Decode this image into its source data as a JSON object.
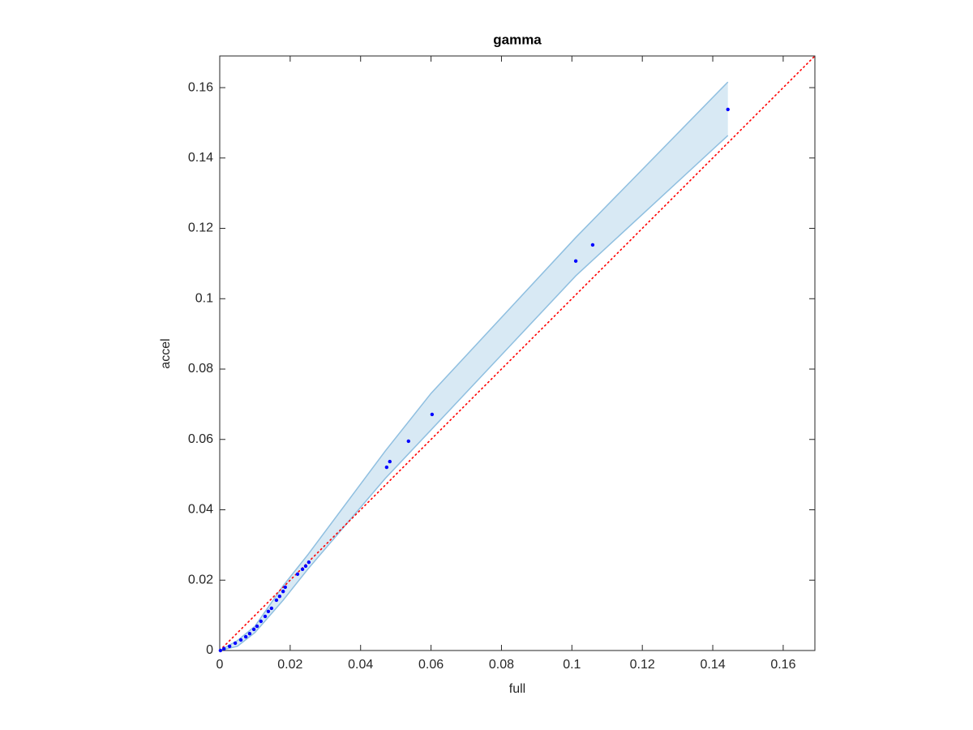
{
  "chart_data": {
    "type": "scatter",
    "title": "gamma",
    "x_label": "full",
    "y_label": "accel",
    "xlim": [
      0,
      0.169
    ],
    "ylim": [
      0,
      0.169
    ],
    "xticks": [
      0,
      0.02,
      0.04,
      0.06,
      0.08,
      0.1,
      0.12,
      0.14,
      0.16
    ],
    "yticks": [
      0,
      0.02,
      0.04,
      0.06,
      0.08,
      0.1,
      0.12,
      0.14,
      0.16
    ],
    "grid": false,
    "series": [
      {
        "color": "#0000ff",
        "x": [
          0.1443,
          0.1059,
          0.1011,
          0.0603,
          0.0536,
          0.0483,
          0.0474,
          0.0253,
          0.0244,
          0.0235,
          0.0221,
          0.0186,
          0.018,
          0.017,
          0.0161,
          0.0147,
          0.0138,
          0.0129,
          0.0117,
          0.0106,
          0.0097,
          0.0085,
          0.0074,
          0.006,
          0.0044,
          0.0028,
          0.0012,
          0.0002
        ],
        "values": [
          0.1538,
          0.1153,
          0.1107,
          0.0671,
          0.0595,
          0.0537,
          0.0521,
          0.0251,
          0.024,
          0.0231,
          0.0217,
          0.018,
          0.0168,
          0.0154,
          0.0143,
          0.012,
          0.0111,
          0.0097,
          0.0083,
          0.0069,
          0.006,
          0.0048,
          0.0039,
          0.003,
          0.0021,
          0.0012,
          0.0005,
          0
        ]
      }
    ],
    "band": {
      "color": "#8fbfe0",
      "x": [
        0,
        0.005,
        0.01,
        0.018,
        0.025,
        0.047,
        0.06,
        0.1011,
        0.1443
      ],
      "lower": [
        0,
        0.0012,
        0.0051,
        0.0143,
        0.0231,
        0.0489,
        0.0627,
        0.1065,
        0.1464
      ],
      "upper": [
        0,
        0.0028,
        0.0069,
        0.0184,
        0.0272,
        0.0567,
        0.0731,
        0.1174,
        0.1616
      ]
    },
    "reference_line": {
      "color": "#ff0000",
      "x": [
        0,
        0.169
      ],
      "values": [
        0,
        0.169
      ]
    }
  }
}
